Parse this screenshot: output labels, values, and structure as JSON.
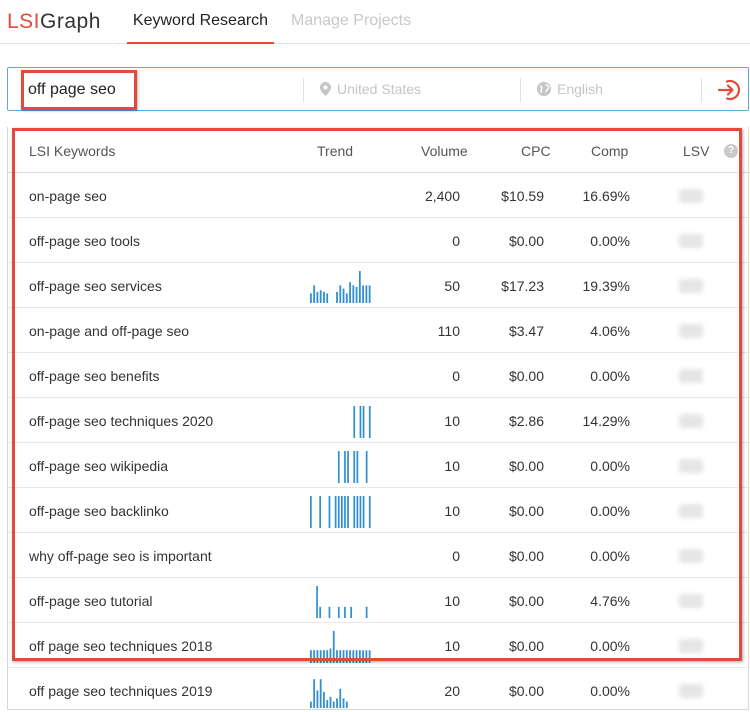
{
  "logo": {
    "lsi": "LSI",
    "graph": "Graph"
  },
  "nav": {
    "tabs": [
      {
        "label": "Keyword Research",
        "active": true
      },
      {
        "label": "Manage Projects",
        "active": false
      }
    ]
  },
  "search": {
    "query": "off page seo",
    "country_placeholder": "United States",
    "language_placeholder": "English",
    "icons": {
      "country": "location-pin-icon",
      "language": "globe-icon",
      "submit": "sign-in-arrow-icon"
    }
  },
  "table": {
    "headers": {
      "keyword": "LSI Keywords",
      "trend": "Trend",
      "volume": "Volume",
      "cpc": "CPC",
      "comp": "Comp",
      "lsv": "LSV"
    },
    "rows": [
      {
        "keyword": "on-page seo",
        "volume": "2,400",
        "cpc": "$10.59",
        "comp": "16.69%",
        "trend": []
      },
      {
        "keyword": "off-page seo tools",
        "volume": "0",
        "cpc": "$0.00",
        "comp": "0.00%",
        "trend": []
      },
      {
        "keyword": "off-page seo services",
        "volume": "50",
        "cpc": "$17.23",
        "comp": "19.39%",
        "trend": [
          0.3,
          0.55,
          0.35,
          0.4,
          0.35,
          0.3,
          0,
          0,
          0.35,
          0.55,
          0.45,
          0.3,
          0.65,
          0.55,
          0.5,
          1.0,
          0.55,
          0.55,
          0.55
        ]
      },
      {
        "keyword": "on-page and off-page seo",
        "volume": "110",
        "cpc": "$3.47",
        "comp": "4.06%",
        "trend": []
      },
      {
        "keyword": "off-page seo benefits",
        "volume": "0",
        "cpc": "$0.00",
        "comp": "0.00%",
        "trend": []
      },
      {
        "keyword": "off-page seo techniques 2020",
        "volume": "10",
        "cpc": "$2.86",
        "comp": "14.29%",
        "trend": [
          0,
          0,
          0,
          0,
          0,
          0,
          0,
          0,
          0,
          0,
          0,
          0,
          0,
          0,
          1,
          0,
          1,
          1,
          0,
          1
        ]
      },
      {
        "keyword": "off-page seo wikipedia",
        "volume": "10",
        "cpc": "$0.00",
        "comp": "0.00%",
        "trend": [
          0,
          0,
          0,
          0,
          0,
          0,
          0,
          0,
          0,
          1,
          0,
          1,
          1,
          0,
          1,
          1,
          0,
          0,
          1,
          0
        ]
      },
      {
        "keyword": "off-page seo backlinko",
        "volume": "10",
        "cpc": "$0.00",
        "comp": "0.00%",
        "trend": [
          1,
          0,
          0,
          1,
          0,
          0,
          1,
          0,
          1,
          1,
          1,
          1,
          1,
          0,
          1,
          1,
          1,
          1,
          0,
          1
        ]
      },
      {
        "keyword": "why off-page seo is important",
        "volume": "0",
        "cpc": "$0.00",
        "comp": "0.00%",
        "trend": []
      },
      {
        "keyword": "off-page seo tutorial",
        "volume": "10",
        "cpc": "$0.00",
        "comp": "4.76%",
        "trend": [
          0,
          0,
          1.0,
          0.35,
          0,
          0,
          0.35,
          0,
          0,
          0.35,
          0,
          0.35,
          0,
          0.35,
          0,
          0,
          0,
          0,
          0.35,
          0
        ]
      },
      {
        "keyword": "off page seo techniques 2018",
        "volume": "10",
        "cpc": "$0.00",
        "comp": "0.00%",
        "trend": [
          0.4,
          0.4,
          0.4,
          0.4,
          0.4,
          0.4,
          0.45,
          1.0,
          0.4,
          0.4,
          0.4,
          0.4,
          0.4,
          0.4,
          0.4,
          0.4,
          0.4,
          0.4,
          0.4
        ]
      },
      {
        "keyword": "off page seo techniques 2019",
        "volume": "20",
        "cpc": "$0.00",
        "comp": "0.00%",
        "trend": [
          0.2,
          0.9,
          0.55,
          0.9,
          0.5,
          0.25,
          0.35,
          0.2,
          0.3,
          0.6,
          0.3,
          0.2,
          0,
          0,
          0,
          0,
          0,
          0,
          0
        ]
      }
    ]
  },
  "colors": {
    "accent": "#e24a3b",
    "trend_bar": "#2f8fd0",
    "search_border": "#5aa9d6"
  }
}
